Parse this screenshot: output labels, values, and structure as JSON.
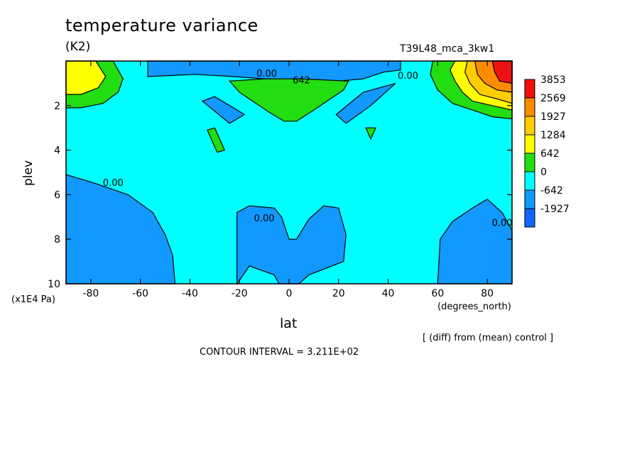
{
  "chart_data": {
    "type": "contour",
    "title": "temperature variance",
    "units_label": "(K2)",
    "run_id": "T39L48_mca_3kw1",
    "xlabel": "lat",
    "ylabel": "plev",
    "x_unit_label": "(degrees_north)",
    "y_unit_label": "(x1E4 Pa)",
    "xlim": [
      -90,
      90
    ],
    "ylim": [
      0,
      10
    ],
    "y_reversed": true,
    "x_ticks": [
      -80,
      -60,
      -40,
      -20,
      0,
      20,
      40,
      60,
      80
    ],
    "y_ticks": [
      2,
      4,
      6,
      8,
      10
    ],
    "note": "[ (diff) from (mean) control ]",
    "contour_interval_text": "CONTOUR INTERVAL = 3.211E+02",
    "legend": [
      {
        "label": "3853",
        "color": "#ee1111"
      },
      {
        "label": "2569",
        "color": "#ff8c00"
      },
      {
        "label": "1927",
        "color": "#ffcc00"
      },
      {
        "label": "1284",
        "color": "#ffff00"
      },
      {
        "label": "642",
        "color": "#22dd11"
      },
      {
        "label": "0",
        "color": "#00ffff"
      },
      {
        "label": "-642",
        "color": "#1199ff"
      },
      {
        "label": "-1927",
        "color": "#1166ff"
      }
    ],
    "contour_labels": [
      {
        "text": "0.00",
        "lat": -71,
        "plev": 5.6
      },
      {
        "text": "0.00",
        "lat": -9,
        "plev": 0.7
      },
      {
        "text": "642",
        "lat": 5,
        "plev": 1.0
      },
      {
        "text": "0.00",
        "lat": 48,
        "plev": 0.8
      },
      {
        "text": "0.00",
        "lat": -10,
        "plev": 7.2
      },
      {
        "text": "0.00",
        "lat": 86,
        "plev": 7.4
      }
    ],
    "regions": [
      {
        "name": "negative-south-lower",
        "color": "#1199ff",
        "points": [
          [
            -90,
            5.1
          ],
          [
            -78,
            5.5
          ],
          [
            -65,
            6.0
          ],
          [
            -55,
            6.8
          ],
          [
            -50,
            7.8
          ],
          [
            -47,
            8.7
          ],
          [
            -46,
            10
          ],
          [
            -90,
            10
          ]
        ]
      },
      {
        "name": "negative-center-lower",
        "color": "#1199ff",
        "points": [
          [
            -21,
            10
          ],
          [
            -21,
            6.8
          ],
          [
            -16,
            6.5
          ],
          [
            -6,
            6.6
          ],
          [
            -3,
            7.0
          ],
          [
            0,
            8.0
          ],
          [
            3,
            8.0
          ],
          [
            8,
            7.1
          ],
          [
            14,
            6.5
          ],
          [
            20,
            6.6
          ],
          [
            23,
            7.8
          ],
          [
            22,
            9.0
          ],
          [
            8,
            9.6
          ],
          [
            4,
            10
          ],
          [
            -4,
            10
          ],
          [
            -6,
            9.6
          ],
          [
            -16,
            9.2
          ]
        ]
      },
      {
        "name": "negative-north-lower",
        "color": "#1199ff",
        "points": [
          [
            60,
            10
          ],
          [
            61,
            8.0
          ],
          [
            66,
            7.2
          ],
          [
            74,
            6.6
          ],
          [
            80,
            6.2
          ],
          [
            86,
            6.8
          ],
          [
            90,
            7.6
          ],
          [
            90,
            10
          ]
        ]
      },
      {
        "name": "negative-top-band",
        "color": "#1199ff",
        "points": [
          [
            -57,
            0
          ],
          [
            45,
            0
          ],
          [
            45,
            0.4
          ],
          [
            38,
            0.5
          ],
          [
            30,
            0.8
          ],
          [
            20,
            0.9
          ],
          [
            5,
            0.9
          ],
          [
            -10,
            0.8
          ],
          [
            -22,
            0.7
          ],
          [
            -38,
            0.6
          ],
          [
            -57,
            0.7
          ]
        ]
      },
      {
        "name": "negative-left-streak",
        "color": "#1199ff",
        "points": [
          [
            -35,
            1.8
          ],
          [
            -30,
            1.6
          ],
          [
            -18,
            2.4
          ],
          [
            -24,
            2.8
          ]
        ]
      },
      {
        "name": "negative-right-streak",
        "color": "#1199ff",
        "points": [
          [
            19,
            2.4
          ],
          [
            30,
            1.4
          ],
          [
            43,
            1.0
          ],
          [
            33,
            2.0
          ],
          [
            23,
            2.8
          ]
        ]
      },
      {
        "name": "positive-center-top",
        "color": "#22dd11",
        "points": [
          [
            -24,
            0.9
          ],
          [
            -10,
            0.8
          ],
          [
            5,
            0.8
          ],
          [
            24,
            0.9
          ],
          [
            22,
            1.3
          ],
          [
            10,
            2.2
          ],
          [
            3,
            2.7
          ],
          [
            -2,
            2.7
          ],
          [
            -8,
            2.3
          ],
          [
            -20,
            1.4
          ]
        ]
      },
      {
        "name": "positive-left-small",
        "color": "#22dd11",
        "points": [
          [
            -33,
            3.1
          ],
          [
            -30,
            3.0
          ],
          [
            -26,
            4.0
          ],
          [
            -29,
            4.1
          ]
        ]
      },
      {
        "name": "positive-right-small",
        "color": "#22dd11",
        "points": [
          [
            31,
            3.0
          ],
          [
            35,
            3.0
          ],
          [
            33,
            3.5
          ]
        ]
      },
      {
        "name": "sw-green",
        "color": "#22dd11",
        "points": [
          [
            -90,
            0
          ],
          [
            -71,
            0
          ],
          [
            -67,
            0.8
          ],
          [
            -69,
            1.4
          ],
          [
            -75,
            1.9
          ],
          [
            -84,
            2.1
          ],
          [
            -90,
            2.1
          ]
        ]
      },
      {
        "name": "sw-yellow",
        "color": "#ffff00",
        "points": [
          [
            -90,
            0
          ],
          [
            -78,
            0
          ],
          [
            -74,
            0.7
          ],
          [
            -77,
            1.2
          ],
          [
            -84,
            1.5
          ],
          [
            -90,
            1.5
          ]
        ]
      },
      {
        "name": "ne-green",
        "color": "#22dd11",
        "points": [
          [
            58,
            0
          ],
          [
            90,
            0
          ],
          [
            90,
            2.6
          ],
          [
            82,
            2.5
          ],
          [
            74,
            2.2
          ],
          [
            66,
            1.9
          ],
          [
            60,
            1.3
          ],
          [
            57,
            0.6
          ]
        ]
      },
      {
        "name": "ne-yellow",
        "color": "#ffff00",
        "points": [
          [
            67,
            0
          ],
          [
            90,
            0
          ],
          [
            90,
            2.2
          ],
          [
            82,
            2.0
          ],
          [
            74,
            1.8
          ],
          [
            70,
            1.4
          ],
          [
            67,
            0.9
          ],
          [
            65,
            0.4
          ]
        ]
      },
      {
        "name": "ne-yellow-orange",
        "color": "#ffcc00",
        "points": [
          [
            72,
            0
          ],
          [
            90,
            0
          ],
          [
            90,
            1.9
          ],
          [
            84,
            1.7
          ],
          [
            77,
            1.5
          ],
          [
            73,
            1.0
          ],
          [
            71,
            0.5
          ]
        ]
      },
      {
        "name": "ne-orange",
        "color": "#ff8c00",
        "points": [
          [
            75,
            0
          ],
          [
            90,
            0
          ],
          [
            90,
            1.4
          ],
          [
            84,
            1.3
          ],
          [
            79,
            1.0
          ],
          [
            76,
            0.6
          ]
        ]
      },
      {
        "name": "ne-red",
        "color": "#ee1111",
        "points": [
          [
            82,
            0
          ],
          [
            90,
            0
          ],
          [
            90,
            1.0
          ],
          [
            85,
            0.9
          ],
          [
            83,
            0.5
          ]
        ]
      }
    ]
  }
}
